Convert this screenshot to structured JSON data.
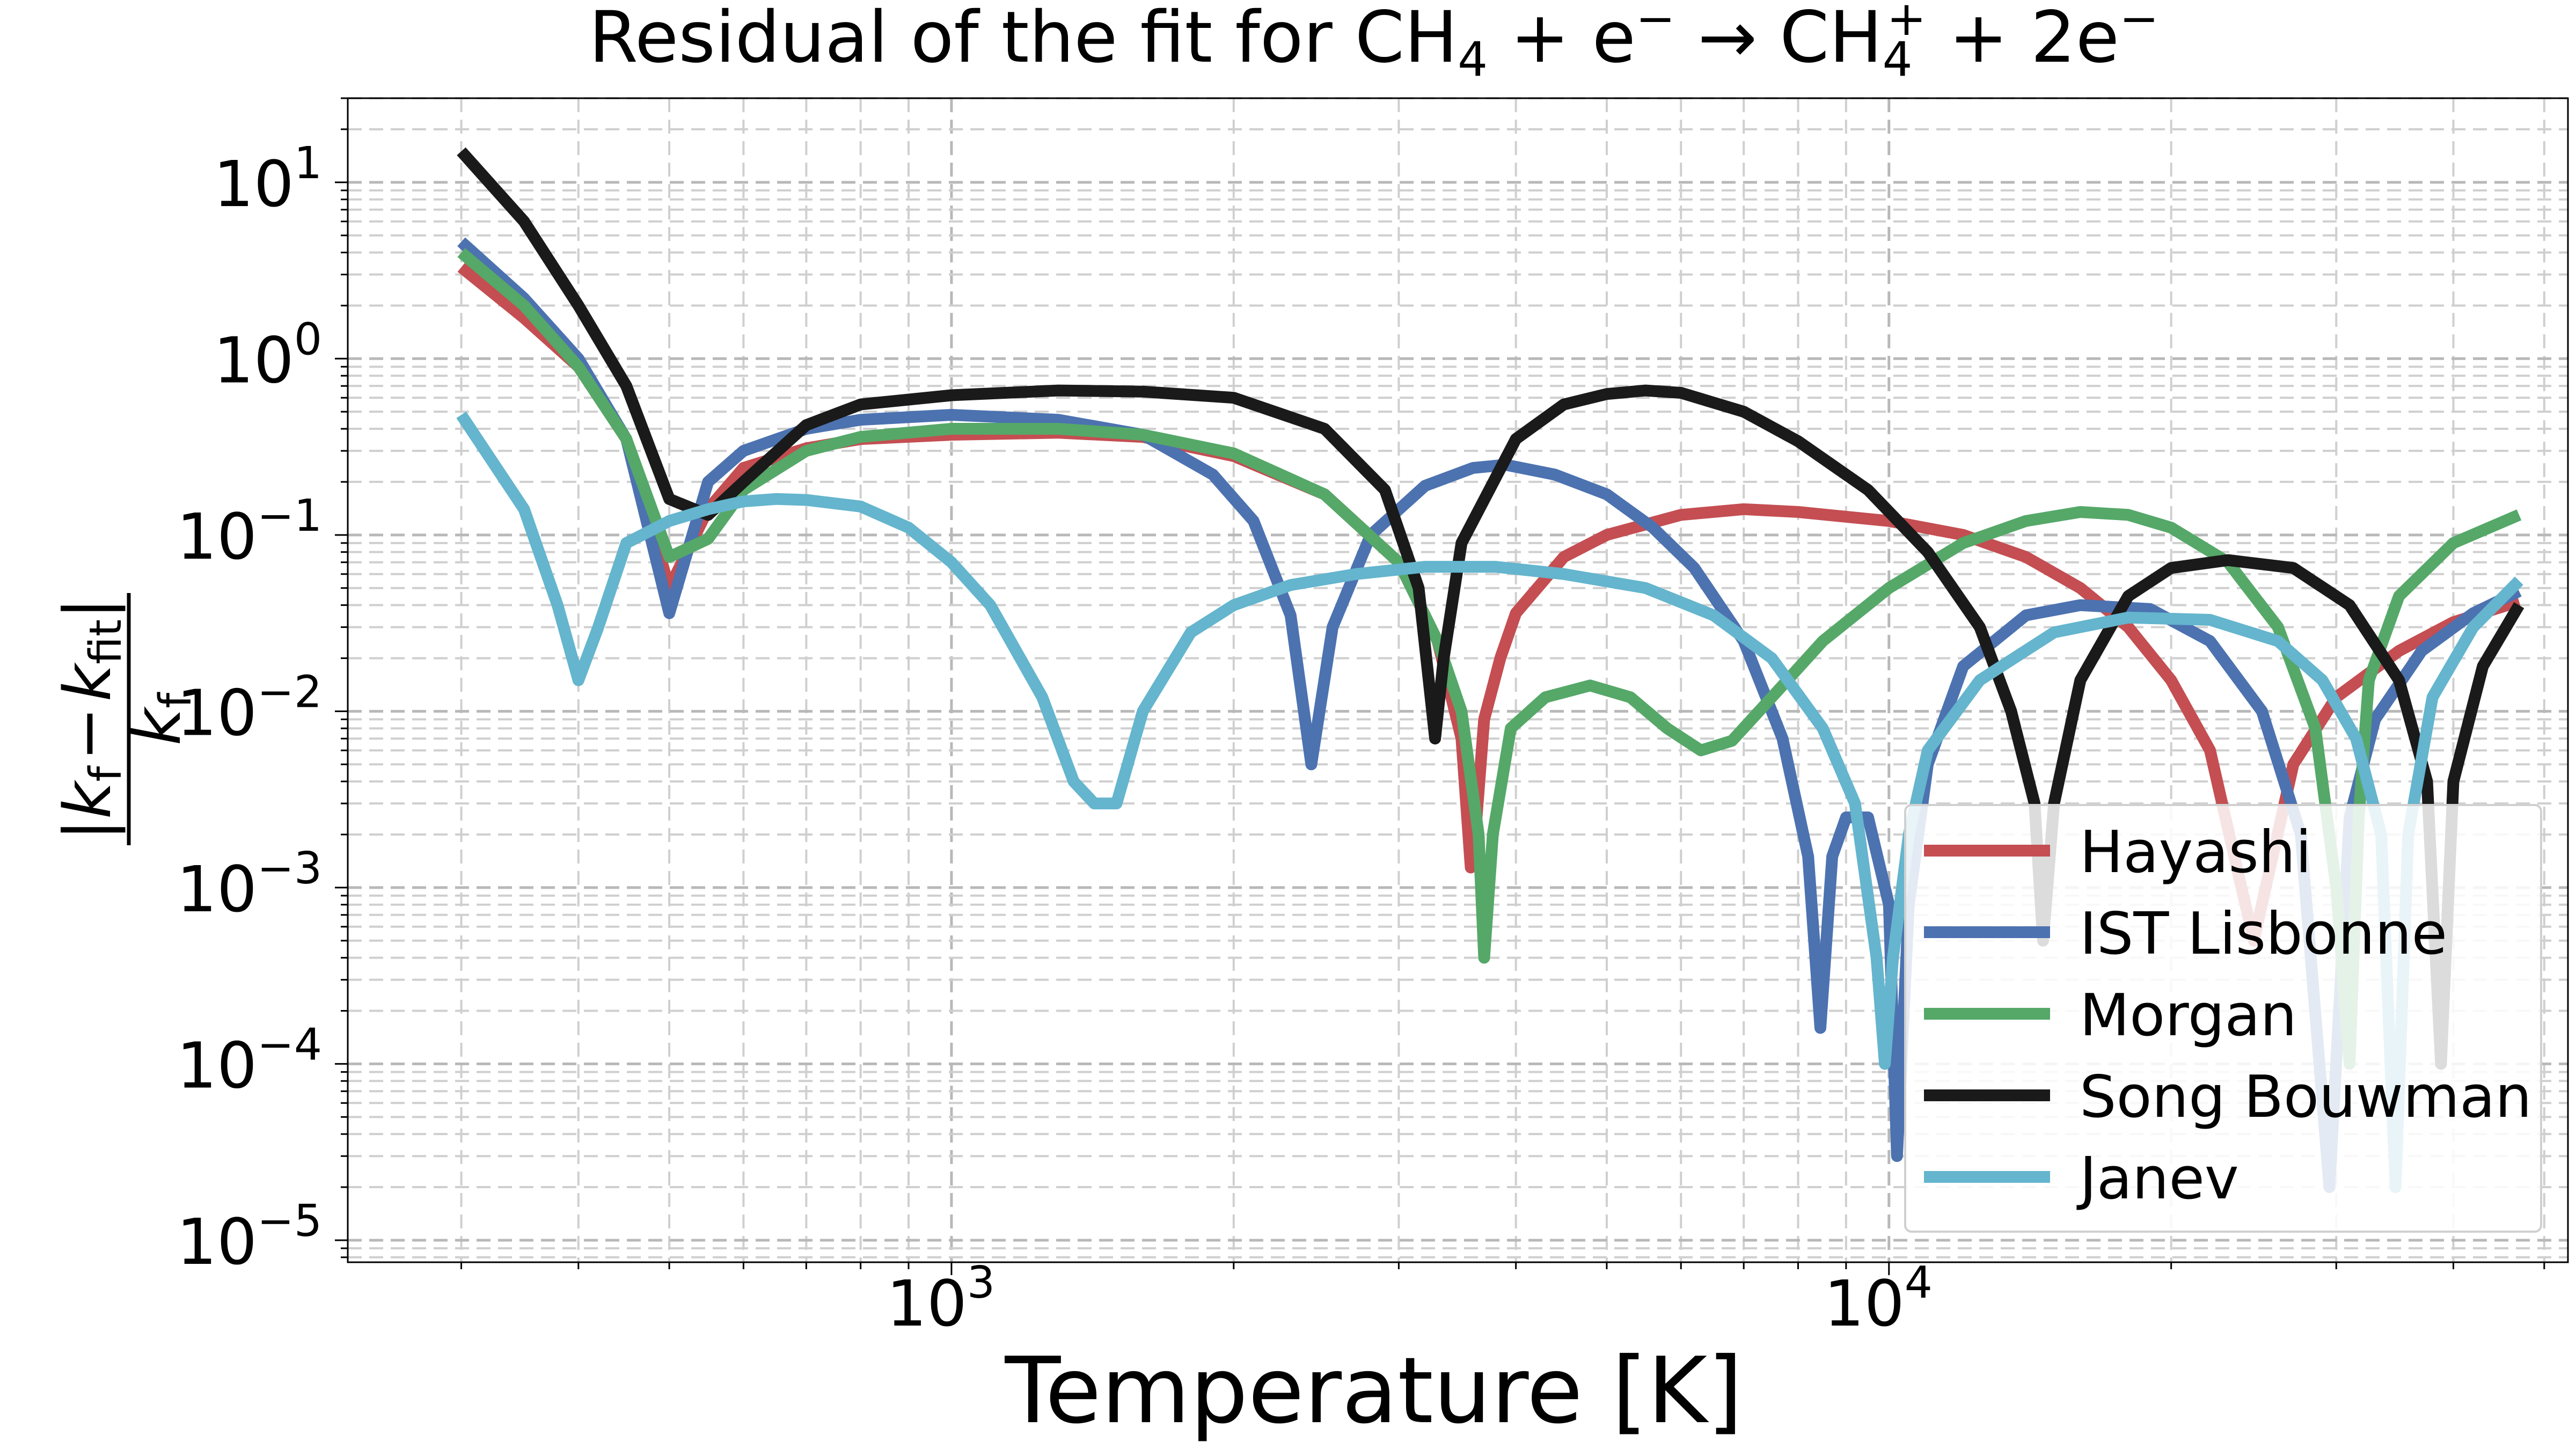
{
  "chart_data": {
    "type": "line",
    "title": "Residual of the fit for CH₄ + e⁻ → CH₄⁺ + 2e⁻",
    "title_parts": [
      "Residual of the fit for CH",
      "4",
      " + e",
      "−",
      " → CH",
      "4",
      "+",
      " + 2e",
      "−"
    ],
    "xlabel": "Temperature [K]",
    "ylabel": "|k_f − k_fit| / k_f",
    "ylabel_parts": {
      "k": "k",
      "f": "f",
      "fit": "fit",
      "minus": "−",
      "bar": "|"
    },
    "x_scale": "log",
    "y_scale": "log",
    "xlim": [
      227,
      53000
    ],
    "ylim": [
      7.5e-06,
      30
    ],
    "x_ticks": [
      {
        "value": 1000,
        "base": "10",
        "exp": "3"
      },
      {
        "value": 10000,
        "base": "10",
        "exp": "4"
      }
    ],
    "y_ticks": [
      {
        "value": 10,
        "base": "10",
        "exp": "1"
      },
      {
        "value": 1,
        "base": "10",
        "exp": "0"
      },
      {
        "value": 0.1,
        "base": "10",
        "exp": "−1"
      },
      {
        "value": 0.01,
        "base": "10",
        "exp": "−2"
      },
      {
        "value": 0.001,
        "base": "10",
        "exp": "−3"
      },
      {
        "value": 0.0001,
        "base": "10",
        "exp": "−4"
      },
      {
        "value": 1e-05,
        "base": "10",
        "exp": "−5"
      }
    ],
    "grid": true,
    "grid_style": "dashed",
    "legend_position": "lower-right",
    "series": [
      {
        "name": "Hayashi",
        "color": "#c44e52",
        "points": [
          [
            300,
            3.3
          ],
          [
            350,
            1.7
          ],
          [
            400,
            0.9
          ],
          [
            450,
            0.35
          ],
          [
            500,
            0.05
          ],
          [
            550,
            0.14
          ],
          [
            600,
            0.24
          ],
          [
            700,
            0.31
          ],
          [
            800,
            0.35
          ],
          [
            1000,
            0.37
          ],
          [
            1300,
            0.38
          ],
          [
            1600,
            0.36
          ],
          [
            2000,
            0.28
          ],
          [
            2500,
            0.17
          ],
          [
            3000,
            0.07
          ],
          [
            3300,
            0.025
          ],
          [
            3500,
            0.007
          ],
          [
            3580,
            0.0013
          ],
          [
            3620,
            0.002
          ],
          [
            3700,
            0.009
          ],
          [
            3850,
            0.02
          ],
          [
            4000,
            0.036
          ],
          [
            4500,
            0.075
          ],
          [
            5000,
            0.1
          ],
          [
            6000,
            0.13
          ],
          [
            7000,
            0.14
          ],
          [
            8000,
            0.135
          ],
          [
            10000,
            0.12
          ],
          [
            12000,
            0.1
          ],
          [
            14000,
            0.075
          ],
          [
            16000,
            0.05
          ],
          [
            18000,
            0.03
          ],
          [
            20000,
            0.015
          ],
          [
            22000,
            0.006
          ],
          [
            23500,
            0.0013
          ],
          [
            24500,
            0.0005
          ],
          [
            25500,
            0.0013
          ],
          [
            27000,
            0.005
          ],
          [
            30000,
            0.012
          ],
          [
            35000,
            0.022
          ],
          [
            40000,
            0.032
          ],
          [
            47000,
            0.042
          ]
        ]
      },
      {
        "name": "IST Lisbonne",
        "color": "#4c72b0",
        "points": [
          [
            300,
            4.6
          ],
          [
            350,
            2.2
          ],
          [
            400,
            1.0
          ],
          [
            450,
            0.35
          ],
          [
            500,
            0.036
          ],
          [
            550,
            0.2
          ],
          [
            600,
            0.3
          ],
          [
            700,
            0.4
          ],
          [
            800,
            0.45
          ],
          [
            1000,
            0.48
          ],
          [
            1300,
            0.45
          ],
          [
            1600,
            0.37
          ],
          [
            1900,
            0.22
          ],
          [
            2100,
            0.12
          ],
          [
            2300,
            0.035
          ],
          [
            2420,
            0.005
          ],
          [
            2550,
            0.03
          ],
          [
            2800,
            0.1
          ],
          [
            3200,
            0.19
          ],
          [
            3600,
            0.24
          ],
          [
            3900,
            0.25
          ],
          [
            4400,
            0.22
          ],
          [
            5000,
            0.17
          ],
          [
            5600,
            0.11
          ],
          [
            6200,
            0.065
          ],
          [
            7000,
            0.025
          ],
          [
            7700,
            0.007
          ],
          [
            8200,
            0.0015
          ],
          [
            8450,
            0.00016
          ],
          [
            8700,
            0.0015
          ],
          [
            9000,
            0.0025
          ],
          [
            9500,
            0.0025
          ],
          [
            10000,
            0.0008
          ],
          [
            10200,
            3e-05
          ],
          [
            10500,
            0.0008
          ],
          [
            11000,
            0.005
          ],
          [
            12000,
            0.018
          ],
          [
            14000,
            0.035
          ],
          [
            16000,
            0.04
          ],
          [
            19000,
            0.038
          ],
          [
            22000,
            0.025
          ],
          [
            25000,
            0.01
          ],
          [
            27500,
            0.002
          ],
          [
            29500,
            2e-05
          ],
          [
            31000,
            0.0025
          ],
          [
            33000,
            0.009
          ],
          [
            37000,
            0.022
          ],
          [
            42000,
            0.036
          ],
          [
            47000,
            0.048
          ]
        ]
      },
      {
        "name": "Morgan",
        "color": "#55a868",
        "points": [
          [
            300,
            4.0
          ],
          [
            350,
            2.0
          ],
          [
            400,
            0.9
          ],
          [
            450,
            0.35
          ],
          [
            500,
            0.075
          ],
          [
            550,
            0.095
          ],
          [
            600,
            0.18
          ],
          [
            700,
            0.3
          ],
          [
            800,
            0.36
          ],
          [
            1000,
            0.4
          ],
          [
            1300,
            0.4
          ],
          [
            1600,
            0.37
          ],
          [
            2000,
            0.29
          ],
          [
            2500,
            0.17
          ],
          [
            3000,
            0.07
          ],
          [
            3300,
            0.025
          ],
          [
            3500,
            0.01
          ],
          [
            3650,
            0.002
          ],
          [
            3700,
            0.0004
          ],
          [
            3780,
            0.002
          ],
          [
            3950,
            0.008
          ],
          [
            4300,
            0.012
          ],
          [
            4800,
            0.014
          ],
          [
            5300,
            0.012
          ],
          [
            5800,
            0.008
          ],
          [
            6300,
            0.006
          ],
          [
            6800,
            0.0068
          ],
          [
            7500,
            0.012
          ],
          [
            8500,
            0.025
          ],
          [
            10000,
            0.05
          ],
          [
            12000,
            0.09
          ],
          [
            14000,
            0.12
          ],
          [
            16000,
            0.135
          ],
          [
            18000,
            0.13
          ],
          [
            20000,
            0.11
          ],
          [
            23000,
            0.07
          ],
          [
            26000,
            0.03
          ],
          [
            28500,
            0.008
          ],
          [
            30000,
            0.001
          ],
          [
            31000,
            0.0001
          ],
          [
            31700,
            0.0025
          ],
          [
            32500,
            0.015
          ],
          [
            35000,
            0.045
          ],
          [
            40000,
            0.09
          ],
          [
            47000,
            0.13
          ]
        ]
      },
      {
        "name": "Song Bouwman",
        "color": "#1a1a1a",
        "points": [
          [
            300,
            15
          ],
          [
            350,
            6
          ],
          [
            400,
            2
          ],
          [
            450,
            0.7
          ],
          [
            500,
            0.16
          ],
          [
            550,
            0.13
          ],
          [
            600,
            0.2
          ],
          [
            700,
            0.42
          ],
          [
            800,
            0.55
          ],
          [
            1000,
            0.62
          ],
          [
            1300,
            0.66
          ],
          [
            1600,
            0.65
          ],
          [
            2000,
            0.6
          ],
          [
            2500,
            0.4
          ],
          [
            2900,
            0.18
          ],
          [
            3150,
            0.05
          ],
          [
            3280,
            0.007
          ],
          [
            3350,
            0.02
          ],
          [
            3500,
            0.09
          ],
          [
            4000,
            0.35
          ],
          [
            4500,
            0.55
          ],
          [
            5000,
            0.63
          ],
          [
            5500,
            0.66
          ],
          [
            6000,
            0.64
          ],
          [
            7000,
            0.5
          ],
          [
            8000,
            0.34
          ],
          [
            9500,
            0.18
          ],
          [
            11000,
            0.08
          ],
          [
            12500,
            0.03
          ],
          [
            13500,
            0.01
          ],
          [
            14300,
            0.003
          ],
          [
            14600,
            0.0005
          ],
          [
            15000,
            0.003
          ],
          [
            16000,
            0.015
          ],
          [
            18000,
            0.045
          ],
          [
            20000,
            0.065
          ],
          [
            23000,
            0.072
          ],
          [
            27000,
            0.065
          ],
          [
            31000,
            0.04
          ],
          [
            35000,
            0.015
          ],
          [
            37500,
            0.004
          ],
          [
            38800,
            0.0001
          ],
          [
            40000,
            0.004
          ],
          [
            43000,
            0.018
          ],
          [
            47000,
            0.04
          ]
        ]
      },
      {
        "name": "Janev",
        "color": "#64b5cd",
        "points": [
          [
            300,
            0.48
          ],
          [
            350,
            0.14
          ],
          [
            380,
            0.04
          ],
          [
            400,
            0.015
          ],
          [
            420,
            0.03
          ],
          [
            450,
            0.09
          ],
          [
            500,
            0.12
          ],
          [
            550,
            0.14
          ],
          [
            600,
            0.155
          ],
          [
            650,
            0.16
          ],
          [
            700,
            0.158
          ],
          [
            800,
            0.145
          ],
          [
            900,
            0.11
          ],
          [
            1000,
            0.07
          ],
          [
            1100,
            0.04
          ],
          [
            1250,
            0.012
          ],
          [
            1350,
            0.004
          ],
          [
            1420,
            0.003
          ],
          [
            1500,
            0.003
          ],
          [
            1600,
            0.01
          ],
          [
            1800,
            0.028
          ],
          [
            2000,
            0.04
          ],
          [
            2300,
            0.052
          ],
          [
            2700,
            0.06
          ],
          [
            3200,
            0.066
          ],
          [
            3800,
            0.066
          ],
          [
            4500,
            0.06
          ],
          [
            5500,
            0.05
          ],
          [
            6500,
            0.035
          ],
          [
            7500,
            0.02
          ],
          [
            8500,
            0.008
          ],
          [
            9200,
            0.003
          ],
          [
            9700,
            0.0004
          ],
          [
            9900,
            0.0001
          ],
          [
            10100,
            0.0004
          ],
          [
            10500,
            0.002
          ],
          [
            11000,
            0.006
          ],
          [
            12500,
            0.015
          ],
          [
            15000,
            0.028
          ],
          [
            18000,
            0.034
          ],
          [
            22000,
            0.033
          ],
          [
            26000,
            0.025
          ],
          [
            29000,
            0.015
          ],
          [
            31500,
            0.007
          ],
          [
            33500,
            0.002
          ],
          [
            34700,
            2e-05
          ],
          [
            35800,
            0.002
          ],
          [
            38000,
            0.012
          ],
          [
            42000,
            0.03
          ],
          [
            47000,
            0.055
          ]
        ]
      }
    ]
  }
}
